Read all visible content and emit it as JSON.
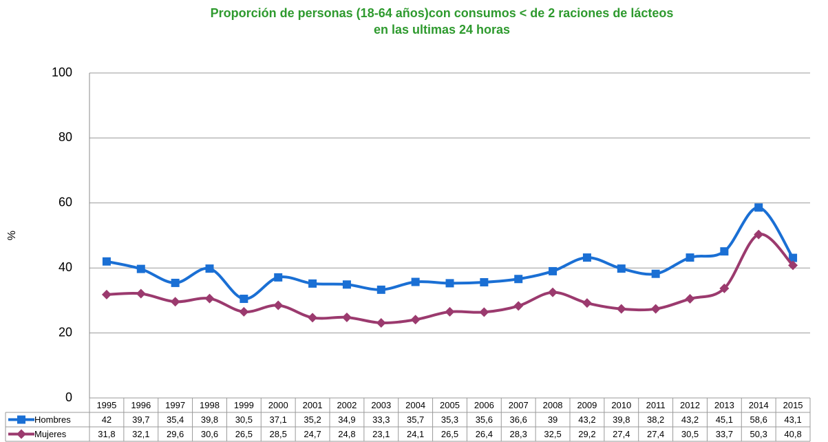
{
  "chart_data": {
    "type": "line",
    "title": [
      "Proporción de personas (18-64 años)con consumos < de 2 raciones de lácteos",
      "en las ultimas 24 horas"
    ],
    "y_label": "%",
    "categories": [
      "1995",
      "1996",
      "1997",
      "1998",
      "1999",
      "2000",
      "2001",
      "2002",
      "2003",
      "2004",
      "2005",
      "2006",
      "2007",
      "2008",
      "2009",
      "2010",
      "2011",
      "2012",
      "2013",
      "2014",
      "2015"
    ],
    "series": [
      {
        "name": "Hombres",
        "color": "#1a6fd4",
        "marker": "square",
        "values": [
          42,
          39.7,
          35.4,
          39.8,
          30.5,
          37.1,
          35.2,
          34.9,
          33.3,
          35.7,
          35.3,
          35.6,
          36.6,
          39,
          43.2,
          39.8,
          38.2,
          43.2,
          45.1,
          58.6,
          43.1
        ],
        "value_labels": [
          "42",
          "39,7",
          "35,4",
          "39,8",
          "30,5",
          "37,1",
          "35,2",
          "34,9",
          "33,3",
          "35,7",
          "35,3",
          "35,6",
          "36,6",
          "39",
          "43,2",
          "39,8",
          "38,2",
          "43,2",
          "45,1",
          "58,6",
          "43,1"
        ]
      },
      {
        "name": "Mujeres",
        "color": "#9b3a6e",
        "marker": "diamond",
        "values": [
          31.8,
          32.1,
          29.6,
          30.6,
          26.5,
          28.5,
          24.7,
          24.8,
          23.1,
          24.1,
          26.5,
          26.4,
          28.3,
          32.5,
          29.2,
          27.4,
          27.4,
          30.5,
          33.7,
          50.3,
          40.8
        ],
        "value_labels": [
          "31,8",
          "32,1",
          "29,6",
          "30,6",
          "26,5",
          "28,5",
          "24,7",
          "24,8",
          "23,1",
          "24,1",
          "26,5",
          "26,4",
          "28,3",
          "32,5",
          "29,2",
          "27,4",
          "27,4",
          "30,5",
          "33,7",
          "50,3",
          "40,8"
        ]
      }
    ],
    "ylim": [
      0,
      100
    ],
    "yticks": [
      0,
      20,
      40,
      60,
      80,
      100
    ],
    "grid": true,
    "smooth": true
  }
}
